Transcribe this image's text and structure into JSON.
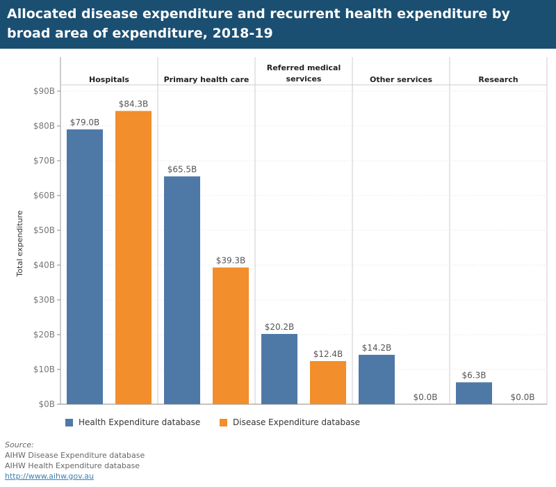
{
  "title": "Allocated disease expenditure and recurrent health expenditure by broad area of expenditure, 2018-19",
  "chart_data": {
    "type": "bar",
    "categories": [
      "Hospitals",
      "Primary health care",
      "Referred medical services",
      "Other services",
      "Research"
    ],
    "series": [
      {
        "name": "Health Expenditure database",
        "color": "#4e79a7",
        "values": [
          79.0,
          65.5,
          20.2,
          14.2,
          6.3
        ],
        "labels": [
          "$79.0B",
          "$65.5B",
          "$20.2B",
          "$14.2B",
          "$6.3B"
        ]
      },
      {
        "name": "Disease Expenditure database",
        "color": "#f28e2b",
        "values": [
          84.3,
          39.3,
          12.4,
          0.0,
          0.0
        ],
        "labels": [
          "$84.3B",
          "$39.3B",
          "$12.4B",
          "$0.0B",
          "$0.0B"
        ]
      }
    ],
    "ylabel": "Total expenditure",
    "ylim": [
      0,
      90
    ],
    "yticks": [
      0,
      10,
      20,
      30,
      40,
      50,
      60,
      70,
      80,
      90
    ],
    "ytick_labels": [
      "$0B",
      "$10B",
      "$20B",
      "$30B",
      "$40B",
      "$50B",
      "$60B",
      "$70B",
      "$80B",
      "$90B"
    ],
    "grid": true,
    "legend": "bottom"
  },
  "source": {
    "heading": "Source:",
    "lines": [
      "AIHW Disease Expenditure database",
      "AIHW Health Expenditure database"
    ],
    "link": "http://www.aihw.gov.au"
  }
}
